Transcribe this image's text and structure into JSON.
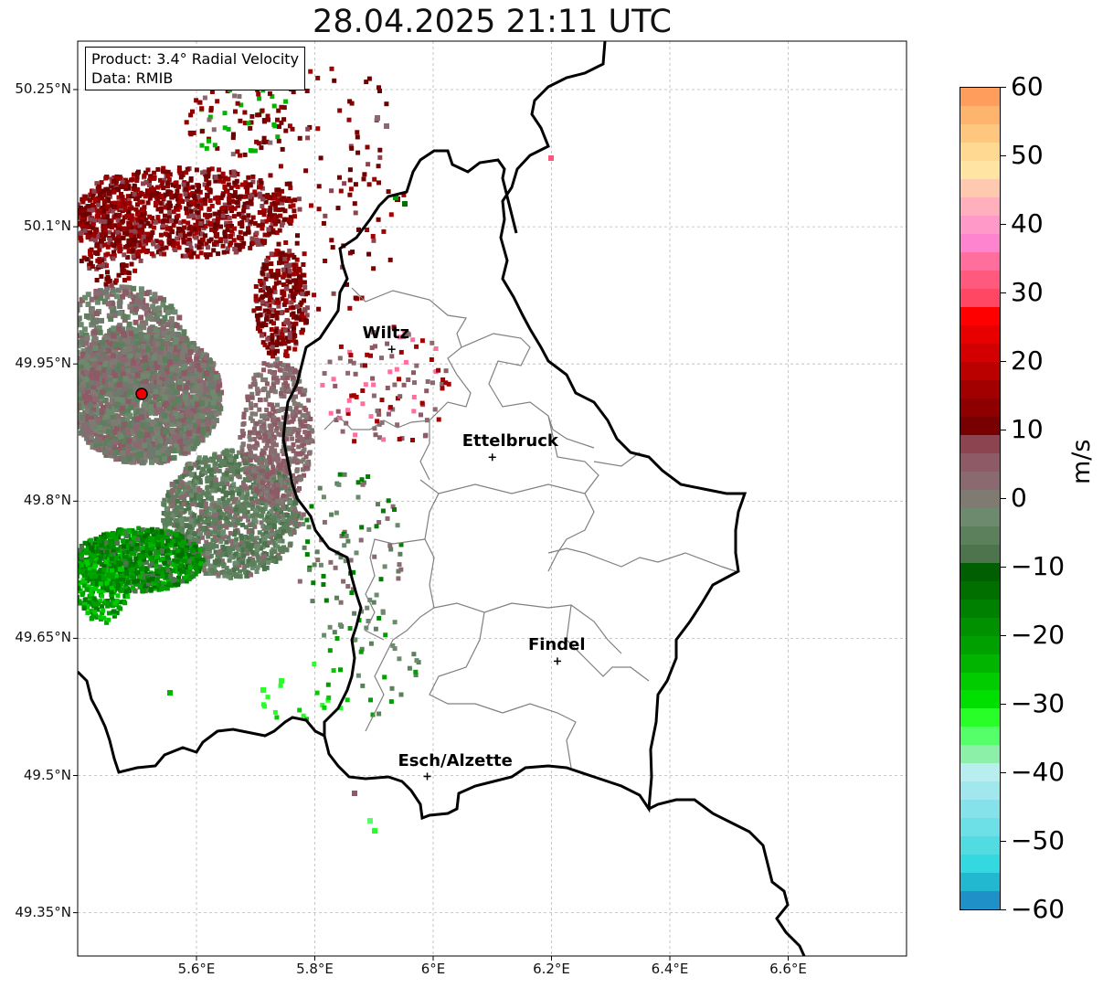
{
  "title": "28.04.2025 21:11 UTC",
  "info": {
    "product": "Product: 3.4° Radial Velocity",
    "data_source": "Data: RMIB"
  },
  "axes": {
    "lat_ticks": [
      "50.25°N",
      "50.1°N",
      "49.95°N",
      "49.8°N",
      "49.65°N",
      "49.5°N",
      "49.35°N"
    ],
    "lon_ticks": [
      "5.6°E",
      "5.8°E",
      "6°E",
      "6.2°E",
      "6.4°E",
      "6.6°E"
    ],
    "gridlines": true
  },
  "cities": [
    {
      "name": "Wiltz",
      "lon": 5.93,
      "lat": 49.966
    },
    {
      "name": "Ettelbruck",
      "lon": 6.1,
      "lat": 49.848
    },
    {
      "name": "Findel",
      "lon": 6.21,
      "lat": 49.625
    },
    {
      "name": "Esch/Alzette",
      "lon": 5.99,
      "lat": 49.499
    }
  ],
  "radar_site": {
    "color": "#ee0000"
  },
  "colorbar": {
    "label": "m/s",
    "ticks": [
      "60",
      "50",
      "40",
      "30",
      "20",
      "10",
      "0",
      "−10",
      "−20",
      "−30",
      "−40",
      "−50",
      "−60"
    ],
    "range": [
      -60,
      60
    ],
    "colors": [
      "#ff9e5c",
      "#ffb46e",
      "#ffc67f",
      "#ffd991",
      "#ffe4a3",
      "#ffc9b0",
      "#ffb0bc",
      "#ff99c8",
      "#ff84cf",
      "#ff6e9c",
      "#ff5a7e",
      "#ff4763",
      "#ff0000",
      "#e80000",
      "#d20000",
      "#bb0000",
      "#a20000",
      "#8e0000",
      "#790000",
      "#8b4450",
      "#8d5a66",
      "#8a6a70",
      "#7f7a72",
      "#6e8a6e",
      "#5c7f5c",
      "#4d744d",
      "#005f00",
      "#006f00",
      "#008000",
      "#009000",
      "#00a000",
      "#00b400",
      "#00cc00",
      "#00e000",
      "#28ff28",
      "#55ff6a",
      "#8cf0a8",
      "#b9eef0",
      "#a0e8ee",
      "#86e2ea",
      "#6ce0e6",
      "#52dce2",
      "#33d8e0",
      "#22b8d0",
      "#2090c8"
    ]
  }
}
